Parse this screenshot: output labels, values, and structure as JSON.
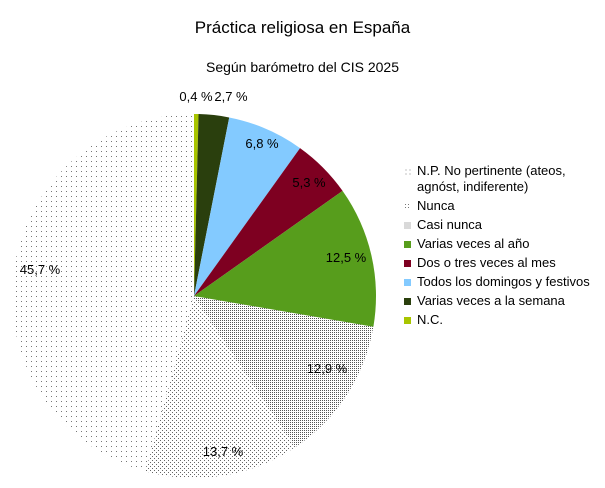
{
  "chart_data": {
    "type": "pie",
    "title": "Práctica religiosa en España",
    "subtitle": "Según barómetro del CIS 2025",
    "slices": [
      {
        "label": "N.C.",
        "value": 0.4,
        "value_label": "0,4 %",
        "color": "#a8c500",
        "fill": "solid"
      },
      {
        "label": "Varias veces a la semana",
        "value": 2.7,
        "value_label": "2,7 %",
        "color": "#2a3f0d",
        "fill": "solid"
      },
      {
        "label": "Todos los domingos y festivos",
        "value": 6.8,
        "value_label": "6,8 %",
        "color": "#83caff",
        "fill": "solid"
      },
      {
        "label": "Dos o tres veces al mes",
        "value": 5.3,
        "value_label": "5,3 %",
        "color": "#7e0021",
        "fill": "solid"
      },
      {
        "label": "Varias veces al año",
        "value": 12.5,
        "value_label": "12,5 %",
        "color": "#579d1c",
        "fill": "solid"
      },
      {
        "label": "Casi nunca",
        "value": 12.9,
        "value_label": "12,9 %",
        "color": "#666666",
        "fill": "dense-dots"
      },
      {
        "label": "Nunca",
        "value": 13.7,
        "value_label": "13,7 %",
        "color": "#777777",
        "fill": "medium-dots"
      },
      {
        "label": "N.P. No pertinente (ateos, agnóst, indiferente)",
        "value": 45.7,
        "value_label": "45,7 %",
        "color": "#888888",
        "fill": "sparse-dots"
      }
    ],
    "legend_order": [
      "N.P. No pertinente (ateos, agnóst, indiferente)",
      "Nunca",
      "Casi nunca",
      "Varias veces al año",
      "Dos o tres veces al mes",
      "Todos los domingos y festivos",
      "Varias veces a la semana",
      "N.C."
    ],
    "legend_position": "right"
  }
}
